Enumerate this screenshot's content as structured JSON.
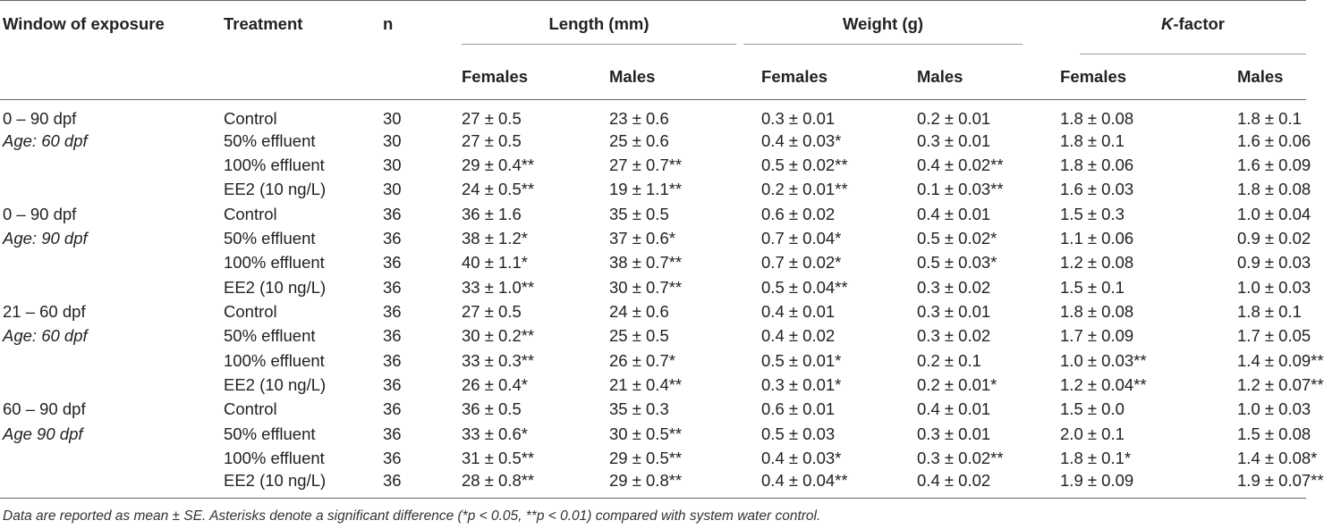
{
  "headers": {
    "window": "Window of exposure",
    "treatment": "Treatment",
    "n": "n",
    "length": "Length (mm)",
    "weight": "Weight (g)",
    "kfactor_k": "K",
    "kfactor_rest": "-factor",
    "females": "Females",
    "males": "Males"
  },
  "rows": [
    {
      "win": "0 – 90 dpf",
      "trt": "Control",
      "n": "30",
      "lf": "27 ± 0.5",
      "lm": "23 ± 0.6",
      "wf": "0.3 ± 0.01",
      "wm": "0.2 ± 0.01",
      "kf": "1.8 ± 0.08",
      "km": "1.8 ± 0.1"
    },
    {
      "win": "Age: 60 dpf",
      "trt": "50% effluent",
      "n": "30",
      "lf": "27 ± 0.5",
      "lm": "25 ± 0.6",
      "wf": "0.4 ± 0.03*",
      "wm": "0.3 ± 0.01",
      "kf": "1.8 ± 0.1",
      "km": "1.6 ± 0.06"
    },
    {
      "win": "",
      "trt": "100% effluent",
      "n": "30",
      "lf": "29 ± 0.4**",
      "lm": "27 ± 0.7**",
      "wf": "0.5 ± 0.02**",
      "wm": "0.4 ± 0.02**",
      "kf": "1.8 ± 0.06",
      "km": "1.6 ± 0.09"
    },
    {
      "win": "",
      "trt": "EE2 (10 ng/L)",
      "n": "30",
      "lf": "24 ± 0.5**",
      "lm": "19 ± 1.1**",
      "wf": "0.2 ± 0.01**",
      "wm": "0.1 ± 0.03**",
      "kf": "1.6 ± 0.03",
      "km": "1.8 ± 0.08"
    },
    {
      "win": "0 – 90 dpf",
      "trt": "Control",
      "n": "36",
      "lf": "36 ± 1.6",
      "lm": "35 ± 0.5",
      "wf": "0.6 ± 0.02",
      "wm": "0.4 ± 0.01",
      "kf": "1.5 ± 0.3",
      "km": "1.0 ± 0.04"
    },
    {
      "win": "Age: 90 dpf",
      "trt": "50% effluent",
      "n": "36",
      "lf": "38 ± 1.2*",
      "lm": "37 ± 0.6*",
      "wf": "0.7 ± 0.04*",
      "wm": "0.5 ± 0.02*",
      "kf": "1.1 ± 0.06",
      "km": "0.9 ± 0.02"
    },
    {
      "win": "",
      "trt": "100% effluent",
      "n": "36",
      "lf": "40 ± 1.1*",
      "lm": "38 ± 0.7**",
      "wf": "0.7 ± 0.02*",
      "wm": "0.5 ± 0.03*",
      "kf": "1.2 ± 0.08",
      "km": "0.9 ± 0.03"
    },
    {
      "win": "",
      "trt": "EE2 (10 ng/L)",
      "n": "36",
      "lf": "33 ± 1.0**",
      "lm": "30 ± 0.7**",
      "wf": "0.5 ± 0.04**",
      "wm": "0.3 ± 0.02",
      "kf": "1.5 ± 0.1",
      "km": "1.0 ± 0.03"
    },
    {
      "win": "21 – 60 dpf",
      "trt": "Control",
      "n": "36",
      "lf": "27 ± 0.5",
      "lm": "24 ± 0.6",
      "wf": "0.4 ± 0.01",
      "wm": "0.3 ± 0.01",
      "kf": "1.8 ± 0.08",
      "km": "1.8 ± 0.1"
    },
    {
      "win": "Age: 60 dpf",
      "trt": "50% effluent",
      "n": "36",
      "lf": "30 ± 0.2**",
      "lm": "25 ± 0.5",
      "wf": "0.4 ± 0.02",
      "wm": "0.3 ± 0.02",
      "kf": "1.7 ± 0.09",
      "km": "1.7 ± 0.05"
    },
    {
      "win": "",
      "trt": "100% effluent",
      "n": "36",
      "lf": "33 ± 0.3**",
      "lm": "26 ± 0.7*",
      "wf": "0.5 ± 0.01*",
      "wm": "0.2 ± 0.1",
      "kf": "1.0 ± 0.03**",
      "km": "1.4 ± 0.09**"
    },
    {
      "win": "",
      "trt": "EE2 (10 ng/L)",
      "n": "36",
      "lf": "26 ± 0.4*",
      "lm": "21 ± 0.4**",
      "wf": "0.3 ± 0.01*",
      "wm": "0.2 ± 0.01*",
      "kf": "1.2 ± 0.04**",
      "km": "1.2 ± 0.07**"
    },
    {
      "win": "60 – 90 dpf",
      "trt": "Control",
      "n": "36",
      "lf": "36 ± 0.5",
      "lm": "35 ± 0.3",
      "wf": "0.6 ± 0.01",
      "wm": "0.4 ± 0.01",
      "kf": "1.5 ± 0.0",
      "km": "1.0 ± 0.03"
    },
    {
      "win": "Age 90 dpf",
      "trt": "50% effluent",
      "n": "36",
      "lf": "33 ± 0.6*",
      "lm": "30 ± 0.5**",
      "wf": "0.5 ± 0.03",
      "wm": "0.3 ± 0.01",
      "kf": "2.0 ± 0.1",
      "km": "1.5 ± 0.08"
    },
    {
      "win": "",
      "trt": "100% effluent",
      "n": "36",
      "lf": "31 ± 0.5**",
      "lm": "29 ± 0.5**",
      "wf": "0.4 ± 0.03*",
      "wm": "0.3 ± 0.02**",
      "kf": "1.8 ± 0.1*",
      "km": "1.4 ± 0.08*"
    },
    {
      "win": "",
      "trt": "EE2 (10 ng/L)",
      "n": "36",
      "lf": "28 ± 0.8**",
      "lm": "29 ± 0.8**",
      "wf": "0.4 ± 0.04**",
      "wm": "0.4 ± 0.02",
      "kf": "1.9 ± 0.09",
      "km": "1.9 ± 0.07**"
    }
  ],
  "footnote": "Data are reported as mean ± SE. Asterisks denote a significant difference (*p < 0.05, **p < 0.01) compared with system water control."
}
